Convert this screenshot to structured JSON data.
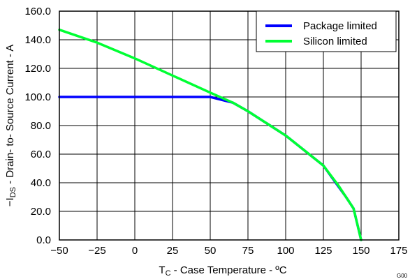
{
  "chart_data": {
    "type": "line",
    "title": "",
    "xlabel": {
      "main": "T",
      "sub": "C",
      "rest": " - Case Temperature - ºC"
    },
    "ylabel": {
      "prefix": "−I",
      "sub": "DS",
      "rest": " - Drain- to- Source Current - A"
    },
    "xlim": [
      -50,
      175
    ],
    "ylim": [
      0,
      160
    ],
    "xticks": [
      -50,
      -25,
      0,
      25,
      50,
      75,
      100,
      125,
      150,
      175
    ],
    "xtick_labels": [
      "−50",
      "−25",
      "0",
      "25",
      "50",
      "75",
      "100",
      "125",
      "150",
      "175"
    ],
    "yticks": [
      0,
      20,
      40,
      60,
      80,
      100,
      120,
      140,
      160
    ],
    "ytick_labels": [
      "0.0",
      "20.0",
      "40.0",
      "60.0",
      "80.0",
      "100.0",
      "120.0",
      "140.0",
      "160.0"
    ],
    "grid": true,
    "legend_position": "top-right",
    "series": [
      {
        "name": "Package limited",
        "color": "#0000ff",
        "points": [
          [
            -50,
            100
          ],
          [
            50,
            100
          ],
          [
            65,
            96
          ],
          [
            75,
            90
          ],
          [
            100,
            73
          ],
          [
            125,
            52
          ],
          [
            140,
            30
          ],
          [
            145,
            22
          ],
          [
            150,
            0
          ]
        ]
      },
      {
        "name": "Silicon limited",
        "color": "#00ff33",
        "points": [
          [
            -50,
            147
          ],
          [
            -25,
            138
          ],
          [
            0,
            127
          ],
          [
            25,
            115
          ],
          [
            50,
            103
          ],
          [
            65,
            96
          ],
          [
            75,
            90
          ],
          [
            100,
            73
          ],
          [
            125,
            52
          ],
          [
            135,
            38
          ],
          [
            140,
            30
          ],
          [
            145,
            22
          ],
          [
            150,
            0
          ]
        ]
      }
    ],
    "figure_code": "G00"
  }
}
